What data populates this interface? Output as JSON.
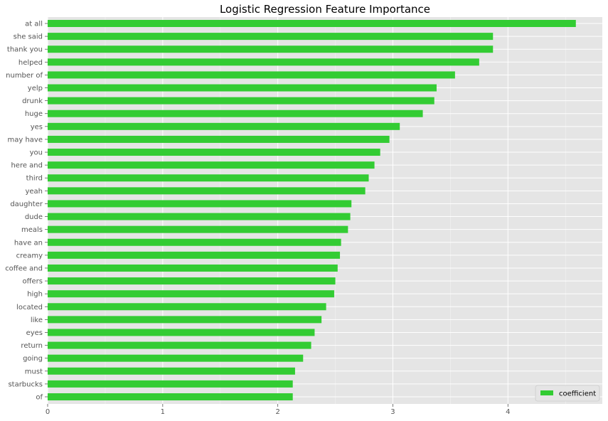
{
  "chart_data": {
    "type": "bar",
    "orientation": "horizontal",
    "title": "Logistic Regression Feature Importance",
    "xlabel": "",
    "ylabel": "",
    "categories": [
      "at all",
      "she said",
      "thank you",
      "helped",
      "number of",
      "yelp",
      "drunk",
      "huge",
      "yes",
      "may have",
      "you",
      "here and",
      "third",
      "yeah",
      "daughter",
      "dude",
      "meals",
      "have an",
      "creamy",
      "coffee and",
      "offers",
      "high",
      "located",
      "like",
      "eyes",
      "return",
      "going",
      "must",
      "starbucks",
      "of"
    ],
    "series": [
      {
        "name": "coefficient",
        "color": "#33cc33",
        "values": [
          4.59,
          3.87,
          3.87,
          3.75,
          3.54,
          3.38,
          3.36,
          3.26,
          3.06,
          2.97,
          2.89,
          2.84,
          2.79,
          2.76,
          2.64,
          2.63,
          2.61,
          2.55,
          2.54,
          2.52,
          2.5,
          2.49,
          2.42,
          2.38,
          2.32,
          2.29,
          2.22,
          2.15,
          2.13,
          2.13
        ]
      }
    ],
    "xlim": [
      0,
      4.82
    ],
    "xticks": [
      0,
      1,
      2,
      3,
      4
    ],
    "grid": true,
    "legend": "bottom-right",
    "style": {
      "background": "#e5e5e5",
      "grid_color": "#ffffff"
    }
  }
}
